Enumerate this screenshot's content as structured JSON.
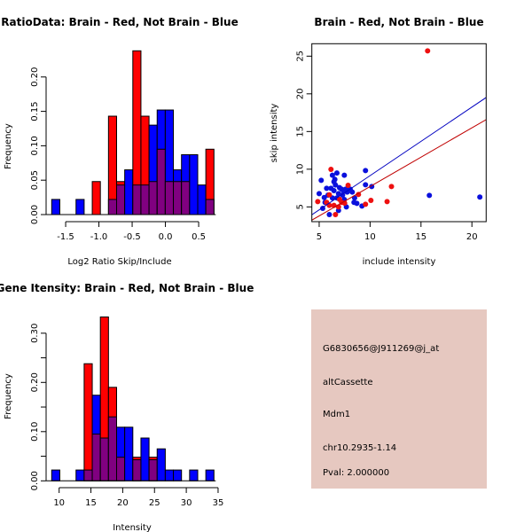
{
  "colors": {
    "red": "#ff0000",
    "blue": "#0000ff",
    "overlap": "#800080",
    "panel_bg": "#e6c8c0",
    "pval": "#a00000",
    "red_line": "#c00000",
    "blue_line": "#0000c0",
    "red_point": "#ee1010",
    "blue_point": "#0a10dd"
  },
  "chart_data": [
    {
      "type": "bar",
      "subtype": "overlaid-histogram",
      "title": "RatioData: Brain - Red, Not Brain - Blue",
      "xlabel": "Log2 Ratio Skip/Include",
      "ylabel": "Frequency",
      "xlim": [
        -1.71,
        0.73
      ],
      "ylim": [
        0,
        0.24
      ],
      "bin_start": -1.71,
      "bin_width": 0.122,
      "xticks": [
        "-1.5",
        "-1.0",
        "-0.5",
        "0.0",
        "0.5"
      ],
      "xtick_values": [
        -1.5,
        -1.0,
        -0.5,
        0.0,
        0.5
      ],
      "yticks": [
        "0.00",
        "0.05",
        "0.10",
        "0.15",
        "0.20"
      ],
      "ytick_values": [
        0,
        0.05,
        0.1,
        0.15,
        0.2
      ],
      "series": [
        {
          "name": "Not Brain",
          "color": "blue",
          "values": [
            0.022,
            0,
            0,
            0.022,
            0,
            0,
            0,
            0.022,
            0.043,
            0.065,
            0.043,
            0.043,
            0.13,
            0.152,
            0.152,
            0.065,
            0.087,
            0.087,
            0.043,
            0.022
          ]
        },
        {
          "name": "Brain",
          "color": "red",
          "values": [
            0,
            0,
            0,
            0,
            0,
            0.048,
            0,
            0.143,
            0.048,
            0,
            0.238,
            0.143,
            0.048,
            0.095,
            0.048,
            0.048,
            0.048,
            0,
            0,
            0.095
          ]
        }
      ]
    },
    {
      "type": "scatter",
      "title": "Brain - Red, Not Brain - Blue",
      "xlabel": "include intensity",
      "ylabel": "skip intensity",
      "xlim": [
        4.28,
        21.4
      ],
      "ylim": [
        3.04,
        26.65
      ],
      "xticks": [
        "5",
        "10",
        "15",
        "20"
      ],
      "xtick_values": [
        5,
        10,
        15,
        20
      ],
      "yticks": [
        "5",
        "10",
        "15",
        "20",
        "25"
      ],
      "ytick_values": [
        5,
        10,
        15,
        20,
        25
      ],
      "series": [
        {
          "name": "Brain",
          "color": "red",
          "points": [
            [
              4.86,
              5.7
            ],
            [
              6.16,
              9.98
            ],
            [
              15.65,
              25.7
            ],
            [
              7.84,
              7.86
            ],
            [
              8.86,
              6.65
            ],
            [
              10.08,
              5.86
            ],
            [
              9.55,
              5.35
            ],
            [
              11.67,
              5.7
            ],
            [
              12.1,
              7.7
            ],
            [
              6.6,
              3.98
            ],
            [
              5.73,
              5.6
            ],
            [
              6.0,
              5.2
            ],
            [
              6.45,
              5.2
            ],
            [
              6.9,
              5.0
            ],
            [
              7.2,
              5.6
            ],
            [
              7.5,
              5.5
            ],
            [
              6.0,
              6.6
            ],
            [
              7.0,
              6.0
            ]
          ],
          "fit": {
            "slope": 0.779,
            "intercept": -0.09
          }
        },
        {
          "name": "Not Brain",
          "color": "blue",
          "points": [
            [
              5.2,
              8.53
            ],
            [
              5.0,
              6.76
            ],
            [
              5.35,
              4.8
            ],
            [
              5.73,
              7.47
            ],
            [
              6.16,
              7.47
            ],
            [
              5.5,
              6.25
            ],
            [
              5.58,
              5.6
            ],
            [
              6.0,
              3.98
            ],
            [
              6.3,
              9.2
            ],
            [
              6.54,
              8.65
            ],
            [
              6.74,
              9.5
            ],
            [
              6.45,
              8.33
            ],
            [
              6.6,
              7.9
            ],
            [
              7.47,
              9.2
            ],
            [
              6.9,
              4.53
            ],
            [
              7.67,
              5.0
            ],
            [
              7.0,
              7.55
            ],
            [
              7.2,
              7.35
            ],
            [
              7.38,
              7.16
            ],
            [
              7.6,
              7.35
            ],
            [
              8.05,
              7.35
            ],
            [
              8.25,
              6.96
            ],
            [
              7.47,
              5.98
            ],
            [
              6.3,
              6.18
            ],
            [
              6.74,
              6.18
            ],
            [
              8.48,
              6.18
            ],
            [
              8.42,
              5.6
            ],
            [
              8.7,
              5.47
            ],
            [
              9.2,
              5.12
            ],
            [
              9.55,
              9.82
            ],
            [
              9.55,
              7.94
            ],
            [
              10.16,
              7.7
            ],
            [
              15.82,
              6.53
            ],
            [
              20.78,
              6.3
            ],
            [
              5.87,
              6.57
            ],
            [
              7.3,
              6.57
            ],
            [
              7.75,
              6.96
            ],
            [
              6.9,
              6.76
            ],
            [
              6.45,
              7.16
            ]
          ],
          "fit": {
            "slope": 0.909,
            "intercept": 0.06
          }
        }
      ]
    },
    {
      "type": "bar",
      "subtype": "overlaid-histogram",
      "title": "Gene Itensity: Brain - Red, Not Brain - Blue",
      "xlabel": "Intensity",
      "ylabel": "Frequency",
      "xlim": [
        8.83,
        34.35
      ],
      "ylim": [
        0,
        0.333
      ],
      "bin_start": 8.83,
      "bin_width": 1.276,
      "xticks": [
        "10",
        "15",
        "20",
        "25",
        "30",
        "35"
      ],
      "xtick_values": [
        10,
        15,
        20,
        25,
        30,
        35
      ],
      "yticks": [
        "0.00",
        "0.10",
        "0.20",
        "0.30"
      ],
      "ytick_values": [
        0,
        0.1,
        0.2,
        0.3
      ],
      "minor_ytick_values": [
        0.05,
        0.15,
        0.25
      ],
      "series": [
        {
          "name": "Not Brain",
          "color": "blue",
          "values": [
            0.022,
            0,
            0,
            0.022,
            0.022,
            0.174,
            0.087,
            0.13,
            0.109,
            0.109,
            0.043,
            0.087,
            0.043,
            0.065,
            0.022,
            0.022,
            0,
            0.022,
            0,
            0.022
          ]
        },
        {
          "name": "Brain",
          "color": "red",
          "values": [
            0,
            0,
            0,
            0,
            0.238,
            0.095,
            0.333,
            0.19,
            0.048,
            0,
            0.048,
            0,
            0.048,
            0,
            0,
            0,
            0,
            0,
            0,
            0
          ]
        }
      ]
    }
  ],
  "info_panel": {
    "probe_id": "G6830656@J911269@j_at",
    "event_type": "altCassette",
    "gene": "Mdm1",
    "location": "chr10.2935-1.14",
    "pval": "Pval: 2.000000"
  }
}
